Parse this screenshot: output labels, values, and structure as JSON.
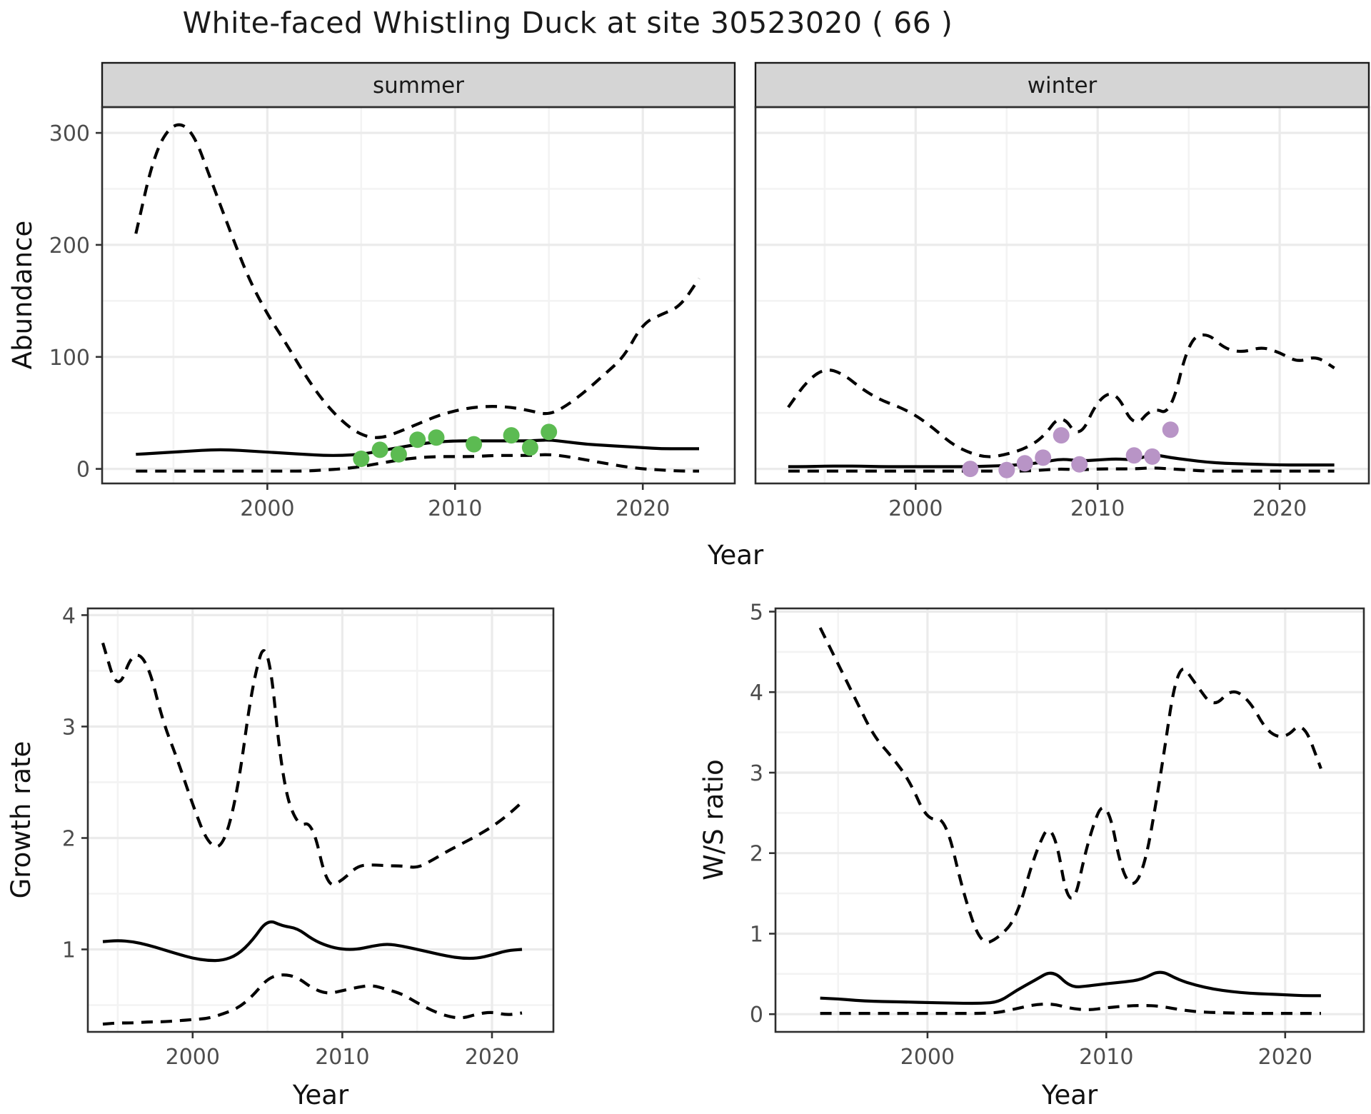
{
  "title": "White-faced Whistling Duck at site 30523020 ( 66 )",
  "style": {
    "background": "#ffffff",
    "line_color": "#000000",
    "grid_major": "#ebebeb",
    "grid_minor": "#f3f3f3",
    "strip_fill": "#d5d5d5",
    "strip_border": "#1a1a1a",
    "panel_border": "#2e2e2e",
    "tick_color": "#333333",
    "tick_label_color": "#4d4d4d",
    "summer_point_color": "#5cbb52",
    "winter_point_color": "#b894c6"
  },
  "chart_data": [
    {
      "id": "abundance-summer",
      "type": "line",
      "facet_label": "summer",
      "ylabel": "Abundance",
      "xlabel": "Year",
      "x_range": [
        1991.2,
        2024.9
      ],
      "y_range": [
        -13,
        323
      ],
      "x_ticks": [
        2000,
        2010,
        2020
      ],
      "y_ticks": [
        0,
        100,
        200,
        300
      ],
      "show_y_tick_labels": true,
      "years": [
        1993,
        1994,
        1995,
        1996,
        1997,
        1998,
        1999,
        2000,
        2001,
        2002,
        2003,
        2004,
        2005,
        2006,
        2007,
        2008,
        2009,
        2010,
        2011,
        2012,
        2013,
        2014,
        2015,
        2016,
        2017,
        2018,
        2019,
        2020,
        2021,
        2022,
        2023
      ],
      "series": [
        {
          "name": "upper-ci",
          "line": "dashed",
          "values": [
            210,
            283,
            310,
            303,
            258,
            213,
            170,
            138,
            112,
            84,
            60,
            42,
            30,
            27,
            33,
            40,
            47,
            52,
            55,
            56,
            55,
            52,
            48,
            57,
            70,
            85,
            100,
            130,
            138,
            145,
            170
          ]
        },
        {
          "name": "fit",
          "line": "solid",
          "values": [
            13,
            14,
            15,
            16,
            17,
            17,
            16,
            15,
            14,
            13,
            12,
            12,
            13,
            16,
            19,
            22,
            24,
            25,
            25,
            25,
            25,
            25,
            26,
            24,
            22,
            21,
            20,
            19,
            18,
            18,
            18
          ]
        },
        {
          "name": "lower-ci",
          "line": "dashed",
          "values": [
            -2,
            -2,
            -2,
            -2,
            -2,
            -2,
            -2,
            -2,
            -2,
            -2,
            -1,
            0,
            2,
            5,
            8,
            10,
            11,
            11,
            11,
            12,
            12,
            12,
            13,
            11,
            8,
            5,
            2,
            0,
            -1,
            -2,
            -2
          ]
        }
      ],
      "points": {
        "name": "observed-counts",
        "color": "#5cbb52",
        "data": [
          [
            2005,
            9
          ],
          [
            2006,
            17
          ],
          [
            2007,
            13
          ],
          [
            2008,
            26
          ],
          [
            2009,
            28
          ],
          [
            2011,
            22
          ],
          [
            2013,
            30
          ],
          [
            2014,
            19
          ],
          [
            2015,
            33
          ]
        ]
      }
    },
    {
      "id": "abundance-winter",
      "type": "line",
      "facet_label": "winter",
      "ylabel": null,
      "xlabel": null,
      "x_range": [
        1991.2,
        2024.9
      ],
      "y_range": [
        -13,
        323
      ],
      "x_ticks": [
        2000,
        2010,
        2020
      ],
      "y_ticks": [
        0,
        100,
        200,
        300
      ],
      "show_y_tick_labels": false,
      "years": [
        1993,
        1994,
        1995,
        1996,
        1997,
        1998,
        1999,
        2000,
        2001,
        2002,
        2003,
        2004,
        2005,
        2006,
        2007,
        2008,
        2009,
        2010,
        2011,
        2012,
        2013,
        2014,
        2015,
        2016,
        2017,
        2018,
        2019,
        2020,
        2021,
        2022,
        2023
      ],
      "series": [
        {
          "name": "upper-ci",
          "line": "dashed",
          "values": [
            55,
            78,
            90,
            85,
            72,
            62,
            56,
            48,
            36,
            22,
            14,
            10,
            13,
            18,
            28,
            50,
            26,
            62,
            70,
            36,
            55,
            48,
            115,
            122,
            107,
            104,
            109,
            104,
            95,
            101,
            90
          ]
        },
        {
          "name": "fit",
          "line": "solid",
          "values": [
            2,
            2,
            2.5,
            2.5,
            2.5,
            2,
            2,
            2,
            2,
            2,
            2,
            2.5,
            3,
            4,
            6,
            9,
            7,
            8,
            9,
            8,
            13,
            10,
            8,
            6,
            5,
            4.5,
            4,
            3.5,
            3.5,
            3.5,
            3.5
          ]
        },
        {
          "name": "lower-ci",
          "line": "dashed",
          "values": [
            -2,
            -2,
            -2,
            -2,
            -2,
            -2,
            -2,
            -2,
            -2,
            -2,
            -2,
            -2,
            -2,
            -2,
            -1,
            0,
            -1,
            0,
            0,
            0,
            1,
            0,
            -1,
            -2,
            -2,
            -2,
            -2,
            -2,
            -2,
            -2,
            -2
          ]
        }
      ],
      "points": {
        "name": "observed-counts",
        "color": "#b894c6",
        "data": [
          [
            2003,
            0
          ],
          [
            2005,
            -1
          ],
          [
            2006,
            5
          ],
          [
            2007,
            10
          ],
          [
            2008,
            30
          ],
          [
            2009,
            4
          ],
          [
            2012,
            12
          ],
          [
            2013,
            11
          ],
          [
            2014,
            35
          ]
        ]
      }
    },
    {
      "id": "growth-rate",
      "type": "line",
      "facet_label": null,
      "ylabel": "Growth rate",
      "xlabel": "Year",
      "x_range": [
        1993.0,
        2024.1
      ],
      "y_range": [
        0.26,
        4.06
      ],
      "x_ticks": [
        2000,
        2010,
        2020
      ],
      "y_ticks": [
        1,
        2,
        3,
        4
      ],
      "show_y_tick_labels": true,
      "years": [
        1994,
        1995,
        1996,
        1997,
        1998,
        1999,
        2000,
        2001,
        2002,
        2003,
        2004,
        2005,
        2006,
        2007,
        2008,
        2009,
        2010,
        2011,
        2012,
        2013,
        2014,
        2015,
        2016,
        2017,
        2018,
        2019,
        2020,
        2021,
        2022
      ],
      "series": [
        {
          "name": "upper-ci",
          "line": "dashed",
          "values": [
            3.75,
            3.3,
            3.68,
            3.58,
            3.05,
            2.7,
            2.3,
            1.95,
            1.9,
            2.4,
            3.4,
            3.85,
            2.5,
            2.1,
            2.15,
            1.55,
            1.62,
            1.75,
            1.76,
            1.75,
            1.75,
            1.73,
            1.8,
            1.88,
            1.95,
            2.02,
            2.1,
            2.2,
            2.32
          ]
        },
        {
          "name": "fit",
          "line": "solid",
          "values": [
            1.07,
            1.08,
            1.07,
            1.04,
            1.0,
            0.96,
            0.92,
            0.9,
            0.9,
            0.95,
            1.08,
            1.27,
            1.21,
            1.19,
            1.09,
            1.03,
            1.0,
            1.0,
            1.03,
            1.05,
            1.03,
            1.0,
            0.97,
            0.94,
            0.92,
            0.92,
            0.95,
            0.99,
            1.0
          ]
        },
        {
          "name": "lower-ci",
          "line": "dashed",
          "values": [
            0.33,
            0.34,
            0.34,
            0.35,
            0.35,
            0.36,
            0.37,
            0.38,
            0.42,
            0.47,
            0.58,
            0.74,
            0.78,
            0.75,
            0.65,
            0.6,
            0.63,
            0.66,
            0.68,
            0.64,
            0.6,
            0.52,
            0.45,
            0.4,
            0.38,
            0.42,
            0.44,
            0.41,
            0.43
          ]
        }
      ],
      "points": null
    },
    {
      "id": "ws-ratio",
      "type": "line",
      "facet_label": null,
      "ylabel": "W/S ratio",
      "xlabel": "Year",
      "x_range": [
        1991.5,
        2024.4
      ],
      "y_range": [
        -0.22,
        5.04
      ],
      "x_ticks": [
        2000,
        2010,
        2020
      ],
      "y_ticks": [
        0,
        1,
        2,
        3,
        4,
        5
      ],
      "show_y_tick_labels": true,
      "years": [
        1994,
        1995,
        1996,
        1997,
        1998,
        1999,
        2000,
        2001,
        2002,
        2003,
        2004,
        2005,
        2006,
        2007,
        2008,
        2009,
        2010,
        2011,
        2012,
        2013,
        2014,
        2015,
        2016,
        2017,
        2018,
        2019,
        2020,
        2021,
        2022
      ],
      "series": [
        {
          "name": "upper-ci",
          "line": "dashed",
          "values": [
            4.8,
            4.35,
            3.9,
            3.45,
            3.2,
            2.9,
            2.4,
            2.45,
            1.5,
            0.85,
            0.95,
            1.2,
            2.0,
            2.45,
            1.15,
            2.2,
            2.75,
            1.6,
            1.65,
            2.9,
            4.42,
            4.1,
            3.8,
            4.05,
            3.9,
            3.5,
            3.42,
            3.65,
            3.05
          ]
        },
        {
          "name": "fit",
          "line": "solid",
          "values": [
            0.2,
            0.19,
            0.17,
            0.16,
            0.155,
            0.15,
            0.145,
            0.14,
            0.135,
            0.135,
            0.15,
            0.3,
            0.42,
            0.55,
            0.33,
            0.35,
            0.38,
            0.4,
            0.43,
            0.55,
            0.43,
            0.36,
            0.31,
            0.28,
            0.26,
            0.25,
            0.24,
            0.23,
            0.23
          ]
        },
        {
          "name": "lower-ci",
          "line": "dashed",
          "values": [
            0.01,
            0.01,
            0.01,
            0.01,
            0.01,
            0.01,
            0.01,
            0.01,
            0.01,
            0.01,
            0.02,
            0.07,
            0.12,
            0.13,
            0.07,
            0.05,
            0.08,
            0.1,
            0.11,
            0.1,
            0.06,
            0.03,
            0.02,
            0.015,
            0.01,
            0.01,
            0.01,
            0.01,
            0.01
          ]
        }
      ],
      "points": null
    }
  ]
}
